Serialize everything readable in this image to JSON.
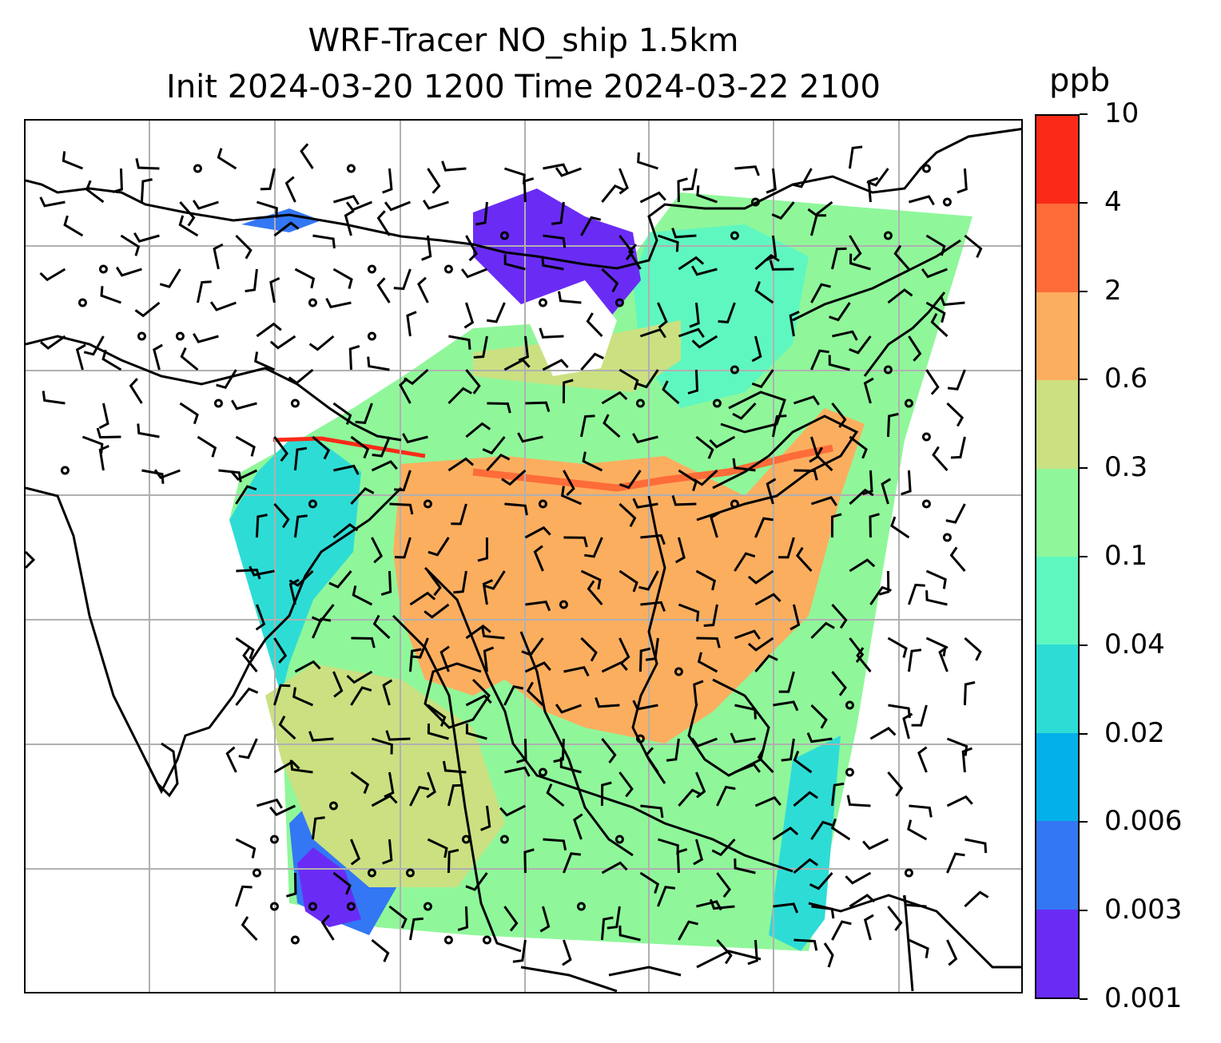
{
  "figure": {
    "title_line1": "WRF-Tracer NO_ship 1.5km",
    "title_line2": "Init 2024-03-20 1200 Time 2024-03-22 2100"
  },
  "colorbar": {
    "unit": "ppb",
    "levels": [
      "0.001",
      "0.003",
      "0.006",
      "0.02",
      "0.04",
      "0.1",
      "0.3",
      "0.6",
      "2",
      "4",
      "10"
    ],
    "colors": [
      "#6a2cf5",
      "#3377f4",
      "#04b0ea",
      "#2edcd6",
      "#5ff7c0",
      "#8ff79a",
      "#cbe081",
      "#fcae5f",
      "#fd6c39",
      "#fb2a18"
    ]
  },
  "map": {
    "domain": "WRF model domain over Asia",
    "coastline_color": "#000000",
    "gridline_color": "#b0b0b0",
    "wind_barb_color": "#000000",
    "no_data_color": "#ffffff"
  }
}
